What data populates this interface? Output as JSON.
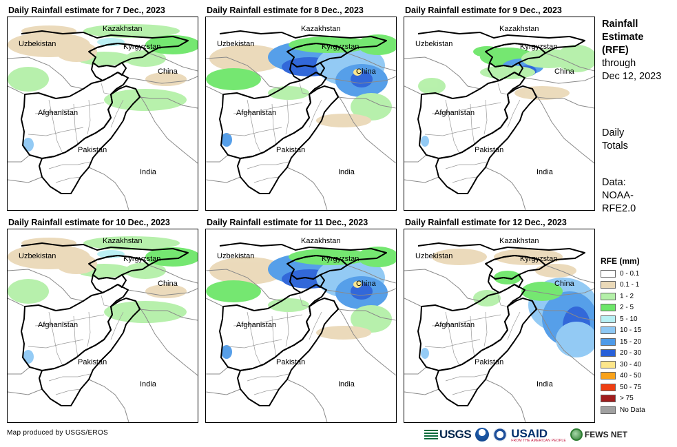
{
  "panels": [
    {
      "title": "Daily Rainfall estimate for 7 Dec., 2023",
      "intensity": "light"
    },
    {
      "title": "Daily Rainfall estimate for 8 Dec., 2023",
      "intensity": "heavy"
    },
    {
      "title": "Daily Rainfall estimate for 9 Dec., 2023",
      "intensity": "moderate"
    },
    {
      "title": "Daily Rainfall estimate for 10 Dec., 2023",
      "intensity": "light"
    },
    {
      "title": "Daily Rainfall estimate for 11 Dec., 2023",
      "intensity": "heavy"
    },
    {
      "title": "Daily Rainfall estimate for 12 Dec., 2023",
      "intensity": "east"
    }
  ],
  "map_labels": {
    "kazakhstan": "Kazakhstan",
    "uzbekistan": "Uzbekistan",
    "kyrgyzstan": "Kyrgyzstan",
    "china": "China",
    "afghanistan": "Afghanistan",
    "pakistan": "Pakistan",
    "india": "India"
  },
  "sidebar": {
    "title_line1": "Rainfall",
    "title_line2": "Estimate",
    "title_line3": "(RFE)",
    "through": "through",
    "date": "Dec 12, 2023",
    "daily_line1": "Daily",
    "daily_line2": "Totals",
    "data_line1": "Data:",
    "data_line2": "NOAA-",
    "data_line3": "RFE2.0"
  },
  "legend": {
    "title": "RFE (mm)",
    "items": [
      {
        "label": "0 - 0.1",
        "color": "#ffffff"
      },
      {
        "label": "0.1 - 1",
        "color": "#ead9b8"
      },
      {
        "label": "1 - 2",
        "color": "#b4f0a8"
      },
      {
        "label": "2 - 5",
        "color": "#6ee66a"
      },
      {
        "label": "5 - 10",
        "color": "#b8f0f4"
      },
      {
        "label": "10 - 15",
        "color": "#8ec8f4"
      },
      {
        "label": "15 - 20",
        "color": "#4e9ae8"
      },
      {
        "label": "20 - 30",
        "color": "#2860d8"
      },
      {
        "label": "30 - 40",
        "color": "#fde68a"
      },
      {
        "label": "40 - 50",
        "color": "#f9a21a"
      },
      {
        "label": "50 - 75",
        "color": "#ef3e12"
      },
      {
        "label": "> 75",
        "color": "#a11d1d"
      },
      {
        "label": "No Data",
        "color": "#a0a0a0"
      }
    ]
  },
  "footer": {
    "credit": "Map produced by USGS/EROS",
    "usgs": "USGS",
    "usaid": "USAID",
    "usaid_sub": "FROM THE AMERICAN PEOPLE",
    "fews": "FEWS NET"
  }
}
